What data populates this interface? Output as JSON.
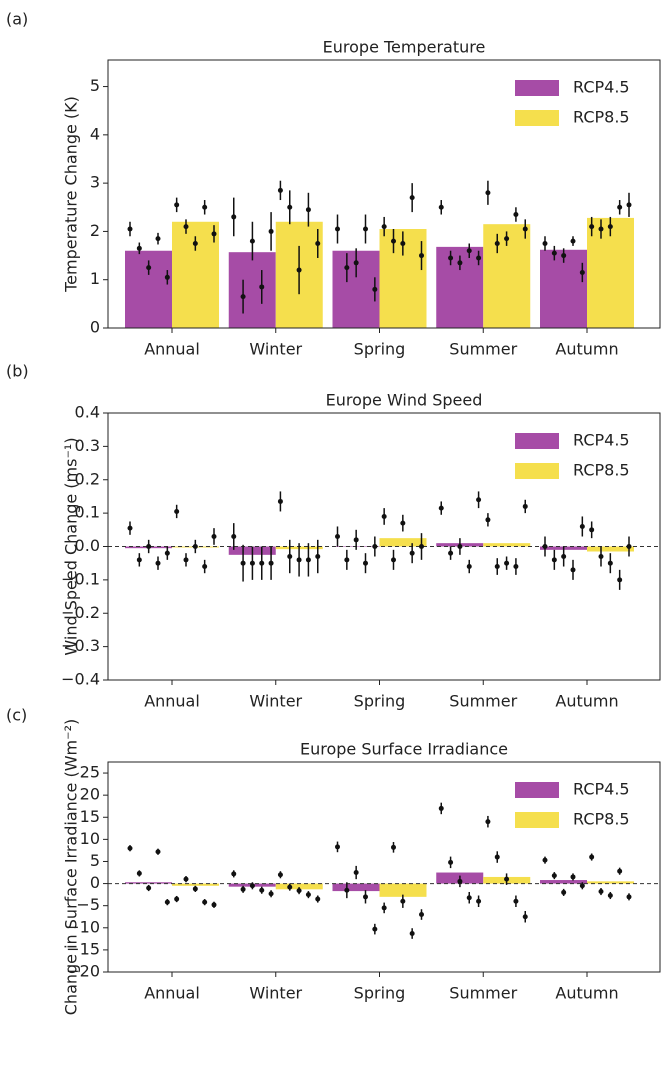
{
  "chart_data": [
    {
      "type": "bar",
      "panel_label": "(a)",
      "title": "Europe Temperature",
      "ylabel": "Temperature Change (K)",
      "categories": [
        "Annual",
        "Winter",
        "Spring",
        "Summer",
        "Autumn"
      ],
      "series": [
        {
          "name": "RCP4.5",
          "color": "#a64ca6",
          "values": [
            1.6,
            1.57,
            1.6,
            1.68,
            1.62
          ]
        },
        {
          "name": "RCP8.5",
          "color": "#f5df4d",
          "values": [
            2.2,
            2.2,
            2.05,
            2.15,
            2.28
          ]
        }
      ],
      "model_points": [
        {
          "values": [
            2.05,
            1.65,
            1.25,
            1.85,
            1.05,
            2.55,
            2.1,
            1.75,
            2.5,
            1.95
          ],
          "errors": [
            0.15,
            0.12,
            0.15,
            0.12,
            0.15,
            0.15,
            0.15,
            0.15,
            0.15,
            0.18
          ]
        },
        {
          "values": [
            2.3,
            0.65,
            1.8,
            0.85,
            2.0,
            2.85,
            2.5,
            1.2,
            2.45,
            1.75
          ],
          "errors": [
            0.4,
            0.35,
            0.4,
            0.35,
            0.4,
            0.2,
            0.35,
            0.5,
            0.35,
            0.3
          ]
        },
        {
          "values": [
            2.05,
            1.25,
            1.35,
            2.05,
            0.8,
            2.1,
            1.8,
            1.75,
            2.7,
            1.5
          ],
          "errors": [
            0.3,
            0.3,
            0.3,
            0.3,
            0.25,
            0.2,
            0.25,
            0.25,
            0.3,
            0.3
          ]
        },
        {
          "values": [
            2.5,
            1.45,
            1.35,
            1.6,
            1.45,
            2.8,
            1.75,
            1.85,
            2.35,
            2.05
          ],
          "errors": [
            0.15,
            0.15,
            0.15,
            0.15,
            0.15,
            0.25,
            0.2,
            0.15,
            0.15,
            0.2
          ]
        },
        {
          "values": [
            1.75,
            1.55,
            1.5,
            1.8,
            1.15,
            2.1,
            2.05,
            2.1,
            2.5,
            2.55
          ],
          "errors": [
            0.15,
            0.15,
            0.15,
            0.1,
            0.2,
            0.2,
            0.2,
            0.2,
            0.15,
            0.25
          ]
        }
      ],
      "ylim": [
        0,
        5.55
      ],
      "yticks": [
        0,
        1,
        2,
        3,
        4,
        5
      ],
      "legend": "upper right"
    },
    {
      "type": "bar",
      "panel_label": "(b)",
      "title": "Europe Wind Speed",
      "ylabel": "Wind Speed Change (ms⁻¹)",
      "categories": [
        "Annual",
        "Winter",
        "Spring",
        "Summer",
        "Autumn"
      ],
      "series": [
        {
          "name": "RCP4.5",
          "color": "#a64ca6",
          "values": [
            -0.005,
            -0.025,
            0.0,
            0.01,
            -0.01
          ]
        },
        {
          "name": "RCP8.5",
          "color": "#f5df4d",
          "values": [
            -0.003,
            -0.008,
            0.025,
            0.01,
            -0.015
          ]
        }
      ],
      "model_points": [
        {
          "values": [
            0.055,
            -0.04,
            0.0,
            -0.05,
            -0.02,
            0.105,
            -0.04,
            0.0,
            -0.06,
            0.03
          ],
          "errors": [
            0.02,
            0.02,
            0.02,
            0.02,
            0.02,
            0.02,
            0.02,
            0.02,
            0.02,
            0.025
          ]
        },
        {
          "values": [
            0.03,
            -0.05,
            -0.05,
            -0.05,
            -0.05,
            0.135,
            -0.03,
            -0.04,
            -0.04,
            -0.03
          ],
          "errors": [
            0.04,
            0.055,
            0.05,
            0.05,
            0.05,
            0.03,
            0.05,
            0.05,
            0.05,
            0.05
          ]
        },
        {
          "values": [
            0.03,
            -0.04,
            0.02,
            -0.05,
            0.0,
            0.09,
            -0.04,
            0.07,
            -0.02,
            0.0
          ],
          "errors": [
            0.03,
            0.03,
            0.03,
            0.03,
            0.03,
            0.025,
            0.03,
            0.025,
            0.03,
            0.04
          ]
        },
        {
          "values": [
            0.115,
            -0.02,
            0.0,
            -0.06,
            0.14,
            0.08,
            -0.06,
            -0.05,
            -0.06,
            0.12
          ],
          "errors": [
            0.02,
            0.02,
            0.025,
            0.02,
            0.025,
            0.02,
            0.025,
            0.02,
            0.025,
            0.02
          ]
        },
        {
          "values": [
            0.0,
            -0.04,
            -0.03,
            -0.07,
            0.06,
            0.05,
            -0.03,
            -0.05,
            -0.1,
            0.0
          ],
          "errors": [
            0.03,
            0.03,
            0.03,
            0.03,
            0.03,
            0.025,
            0.03,
            0.03,
            0.03,
            0.03
          ]
        }
      ],
      "ylim": [
        -0.4,
        0.4
      ],
      "yticks": [
        {
          "value": -0.4,
          "label": "−0.4"
        },
        {
          "value": -0.3,
          "label": "−0.3"
        },
        {
          "value": -0.2,
          "label": "−0.2"
        },
        {
          "value": -0.1,
          "label": "−0.1"
        },
        {
          "value": 0,
          "label": "0.0"
        },
        0.1,
        0.2,
        0.3,
        0.4
      ],
      "legend": "upper right"
    },
    {
      "type": "bar",
      "panel_label": "(c)",
      "title": "Europe Surface Irradiance",
      "ylabel": "Change in Surface Irradiance (Wm⁻²)",
      "categories": [
        "Annual",
        "Winter",
        "Spring",
        "Summer",
        "Autumn"
      ],
      "series": [
        {
          "name": "RCP4.5",
          "color": "#a64ca6",
          "values": [
            0.3,
            -0.7,
            -1.7,
            2.5,
            0.8
          ]
        },
        {
          "name": "RCP8.5",
          "color": "#f5df4d",
          "values": [
            -0.5,
            -1.3,
            -3.0,
            1.5,
            0.5
          ]
        }
      ],
      "model_points": [
        {
          "values": [
            8,
            2.3,
            -1,
            7.2,
            -4.2,
            -3.5,
            1,
            -1.2,
            -4.2,
            -4.8
          ],
          "errors": [
            0.7,
            0.7,
            0.7,
            0.7,
            0.7,
            0.7,
            0.7,
            0.7,
            0.7,
            0.7
          ]
        },
        {
          "values": [
            2.2,
            -1.3,
            -0.5,
            -1.5,
            -2.3,
            2,
            -0.8,
            -1.6,
            -2.5,
            -3.5
          ],
          "errors": [
            0.8,
            0.8,
            0.8,
            0.8,
            0.8,
            0.8,
            0.8,
            0.8,
            0.8,
            0.8
          ]
        },
        {
          "values": [
            8.3,
            -1.5,
            2.5,
            -3,
            -10.3,
            -5.5,
            8.2,
            -4,
            -11.3,
            -7
          ],
          "errors": [
            1.2,
            1.8,
            1.5,
            1.5,
            1.2,
            1.2,
            1.2,
            1.5,
            1.2,
            1.2
          ]
        },
        {
          "values": [
            17,
            4.8,
            0.5,
            -3.2,
            -4,
            14,
            6,
            1,
            -4,
            -7.5
          ],
          "errors": [
            1.3,
            1.3,
            1.3,
            1.3,
            1.3,
            1.3,
            1.3,
            1.3,
            1.3,
            1.3
          ]
        },
        {
          "values": [
            5.3,
            1.8,
            -2,
            1.5,
            -0.5,
            6,
            -1.8,
            -2.7,
            2.8,
            -3
          ],
          "errors": [
            0.8,
            0.8,
            0.8,
            0.8,
            0.8,
            0.8,
            0.8,
            0.8,
            0.8,
            0.8
          ]
        }
      ],
      "ylim": [
        -20,
        27.5
      ],
      "yticks": [
        {
          "value": -20,
          "label": "−20"
        },
        {
          "value": -15,
          "label": "−15"
        },
        {
          "value": -10,
          "label": "−10"
        },
        {
          "value": -5,
          "label": "−5"
        },
        0,
        5,
        10,
        15,
        20,
        25
      ],
      "legend": "upper right"
    }
  ]
}
